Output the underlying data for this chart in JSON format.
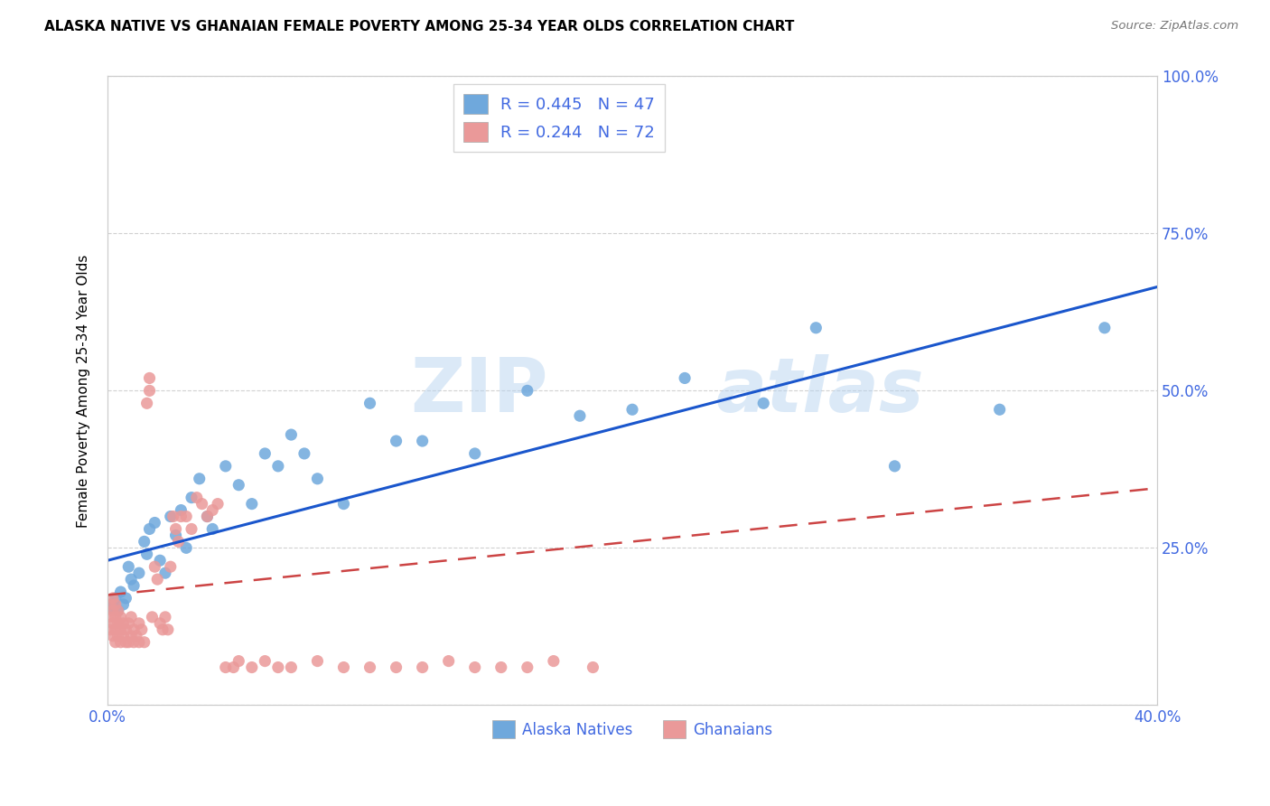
{
  "title": "ALASKA NATIVE VS GHANAIAN FEMALE POVERTY AMONG 25-34 YEAR OLDS CORRELATION CHART",
  "source": "Source: ZipAtlas.com",
  "ylabel": "Female Poverty Among 25-34 Year Olds",
  "xlim": [
    0.0,
    0.4
  ],
  "ylim": [
    0.0,
    1.0
  ],
  "alaska_color": "#6fa8dc",
  "ghanaian_color": "#ea9999",
  "alaska_line_color": "#1a56cc",
  "ghanaian_line_color": "#cc4444",
  "background_color": "#ffffff",
  "grid_color": "#cccccc",
  "watermark_zip": "ZIP",
  "watermark_atlas": "atlas",
  "alaska_line_x0": 0.0,
  "alaska_line_y0": 0.23,
  "alaska_line_x1": 0.4,
  "alaska_line_y1": 0.665,
  "ghanaian_line_x0": 0.0,
  "ghanaian_line_y0": 0.175,
  "ghanaian_line_x1": 0.4,
  "ghanaian_line_y1": 0.345,
  "alaska_pts_x": [
    0.001,
    0.002,
    0.003,
    0.004,
    0.005,
    0.006,
    0.007,
    0.008,
    0.009,
    0.01,
    0.012,
    0.014,
    0.015,
    0.016,
    0.018,
    0.02,
    0.022,
    0.024,
    0.026,
    0.028,
    0.03,
    0.032,
    0.035,
    0.038,
    0.04,
    0.045,
    0.05,
    0.055,
    0.06,
    0.065,
    0.07,
    0.075,
    0.08,
    0.09,
    0.1,
    0.11,
    0.12,
    0.14,
    0.16,
    0.18,
    0.2,
    0.22,
    0.25,
    0.27,
    0.3,
    0.34,
    0.38
  ],
  "alaska_pts_y": [
    0.155,
    0.16,
    0.17,
    0.15,
    0.18,
    0.16,
    0.17,
    0.22,
    0.2,
    0.19,
    0.21,
    0.26,
    0.24,
    0.28,
    0.29,
    0.23,
    0.21,
    0.3,
    0.27,
    0.31,
    0.25,
    0.33,
    0.36,
    0.3,
    0.28,
    0.38,
    0.35,
    0.32,
    0.4,
    0.38,
    0.43,
    0.4,
    0.36,
    0.32,
    0.48,
    0.42,
    0.42,
    0.4,
    0.5,
    0.46,
    0.47,
    0.52,
    0.48,
    0.6,
    0.38,
    0.47,
    0.6
  ],
  "ghanaian_pts_x": [
    0.001,
    0.001,
    0.001,
    0.002,
    0.002,
    0.002,
    0.002,
    0.003,
    0.003,
    0.003,
    0.003,
    0.004,
    0.004,
    0.004,
    0.005,
    0.005,
    0.005,
    0.006,
    0.006,
    0.007,
    0.007,
    0.008,
    0.008,
    0.009,
    0.009,
    0.01,
    0.01,
    0.011,
    0.012,
    0.012,
    0.013,
    0.014,
    0.015,
    0.016,
    0.016,
    0.017,
    0.018,
    0.019,
    0.02,
    0.021,
    0.022,
    0.023,
    0.024,
    0.025,
    0.026,
    0.027,
    0.028,
    0.03,
    0.032,
    0.034,
    0.036,
    0.038,
    0.04,
    0.042,
    0.045,
    0.048,
    0.05,
    0.055,
    0.06,
    0.065,
    0.07,
    0.08,
    0.09,
    0.1,
    0.11,
    0.12,
    0.13,
    0.14,
    0.15,
    0.16,
    0.17,
    0.185
  ],
  "ghanaian_pts_y": [
    0.12,
    0.14,
    0.16,
    0.11,
    0.13,
    0.15,
    0.17,
    0.1,
    0.12,
    0.14,
    0.16,
    0.11,
    0.13,
    0.15,
    0.1,
    0.12,
    0.14,
    0.11,
    0.13,
    0.1,
    0.12,
    0.1,
    0.13,
    0.11,
    0.14,
    0.1,
    0.12,
    0.11,
    0.1,
    0.13,
    0.12,
    0.1,
    0.48,
    0.5,
    0.52,
    0.14,
    0.22,
    0.2,
    0.13,
    0.12,
    0.14,
    0.12,
    0.22,
    0.3,
    0.28,
    0.26,
    0.3,
    0.3,
    0.28,
    0.33,
    0.32,
    0.3,
    0.31,
    0.32,
    0.06,
    0.06,
    0.07,
    0.06,
    0.07,
    0.06,
    0.06,
    0.07,
    0.06,
    0.06,
    0.06,
    0.06,
    0.07,
    0.06,
    0.06,
    0.06,
    0.07,
    0.06
  ]
}
